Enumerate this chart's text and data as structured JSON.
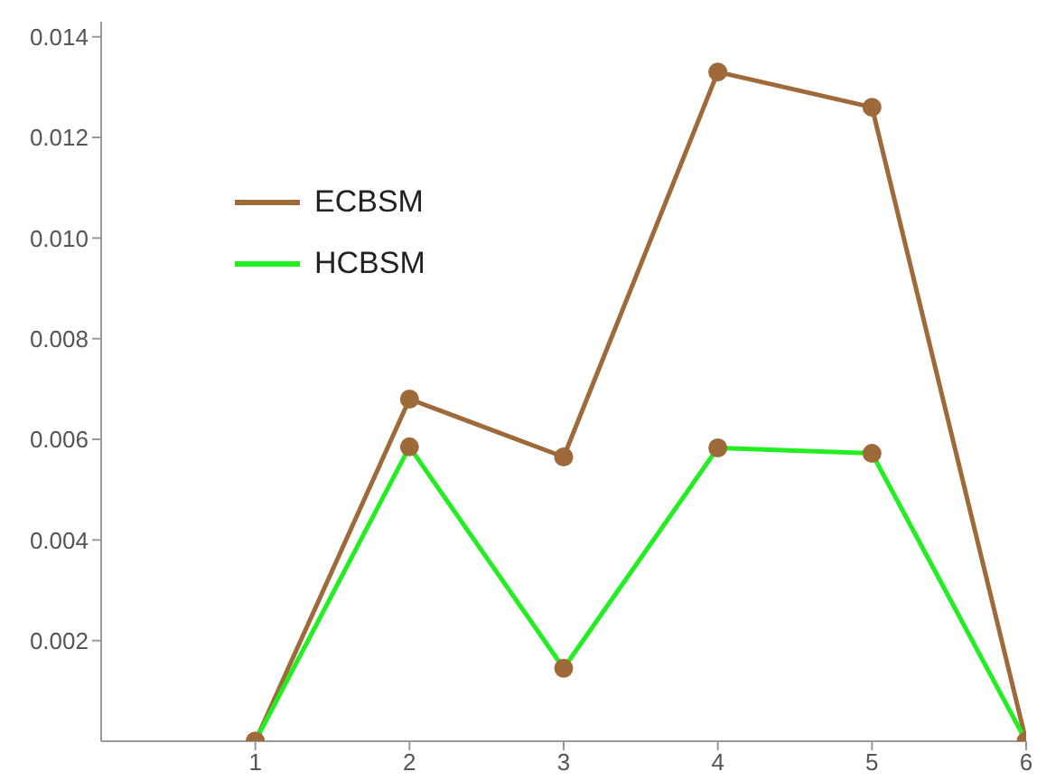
{
  "chart_data": {
    "type": "line",
    "x": [
      1,
      2,
      3,
      4,
      5,
      6
    ],
    "series": [
      {
        "name": "ECBSM",
        "color": "#9e6a3a",
        "values": [
          0,
          0.0068,
          0.00565,
          0.0133,
          0.0126,
          0
        ]
      },
      {
        "name": "HCBSM",
        "color": "#22ee22",
        "values": [
          0,
          0.00585,
          0.00145,
          0.00583,
          0.00572,
          0
        ]
      }
    ],
    "xlim": [
      0,
      6
    ],
    "xticks": [
      1,
      2,
      3,
      4,
      5,
      6
    ],
    "ylim": [
      0,
      0.0143
    ],
    "yticks": [
      0.002,
      0.004,
      0.006,
      0.008,
      {
        "value": 0.01,
        "label": "0.010"
      },
      0.012,
      0.014
    ],
    "marker": "circle",
    "legend": "top left",
    "grid": false
  }
}
